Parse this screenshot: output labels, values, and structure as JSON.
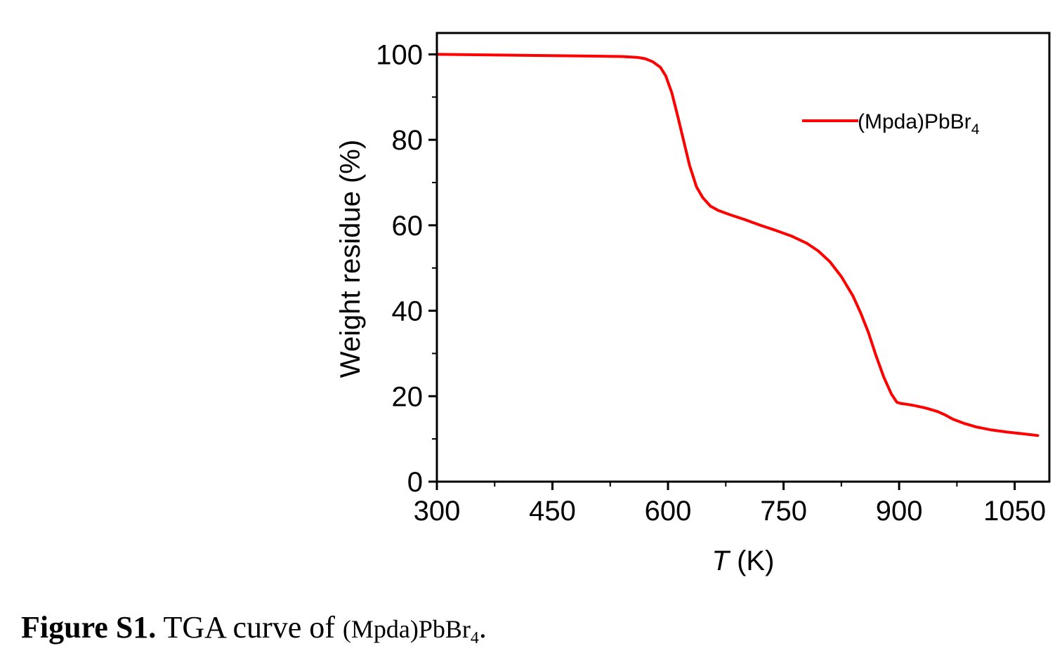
{
  "chart_data": {
    "type": "line",
    "xlabel_italic": "T",
    "xlabel_unit": "(K)",
    "ylabel": "Weight residue (%)",
    "xlim": [
      300,
      1095
    ],
    "ylim": [
      0,
      105
    ],
    "xticks": [
      300,
      450,
      600,
      750,
      900,
      1050
    ],
    "yticks": [
      0,
      20,
      40,
      60,
      80,
      100
    ],
    "x_minor_step": 75,
    "y_minor_step": 10,
    "grid": false,
    "legend_position": "top-right",
    "series": [
      {
        "name": "(Mpda)PbBr",
        "name_subscript": "4",
        "color": "#ff0000",
        "x": [
          302,
          350,
          400,
          450,
          500,
          540,
          560,
          570,
          580,
          590,
          597,
          605,
          612,
          620,
          628,
          637,
          645,
          655,
          665,
          680,
          700,
          720,
          740,
          760,
          780,
          795,
          810,
          825,
          840,
          850,
          860,
          870,
          880,
          890,
          897,
          902,
          910,
          920,
          935,
          950,
          960,
          970,
          985,
          1000,
          1020,
          1040,
          1060,
          1080
        ],
        "y": [
          100,
          99.9,
          99.8,
          99.7,
          99.6,
          99.5,
          99.3,
          99.0,
          98.3,
          97,
          95,
          91,
          86,
          80,
          74,
          69,
          66.5,
          64.5,
          63.5,
          62.5,
          61.3,
          60.0,
          58.8,
          57.5,
          55.8,
          54,
          51.5,
          48,
          43.5,
          39.5,
          35,
          29.5,
          24.5,
          20.5,
          18.6,
          18.3,
          18.1,
          17.8,
          17.2,
          16.4,
          15.6,
          14.6,
          13.6,
          12.8,
          12.1,
          11.6,
          11.2,
          10.8
        ]
      }
    ]
  },
  "caption": {
    "lead": "Figure S1.",
    "text": " TGA curve of ",
    "compound": "(Mpda)PbBr",
    "compound_sub": "4",
    "end": "."
  }
}
